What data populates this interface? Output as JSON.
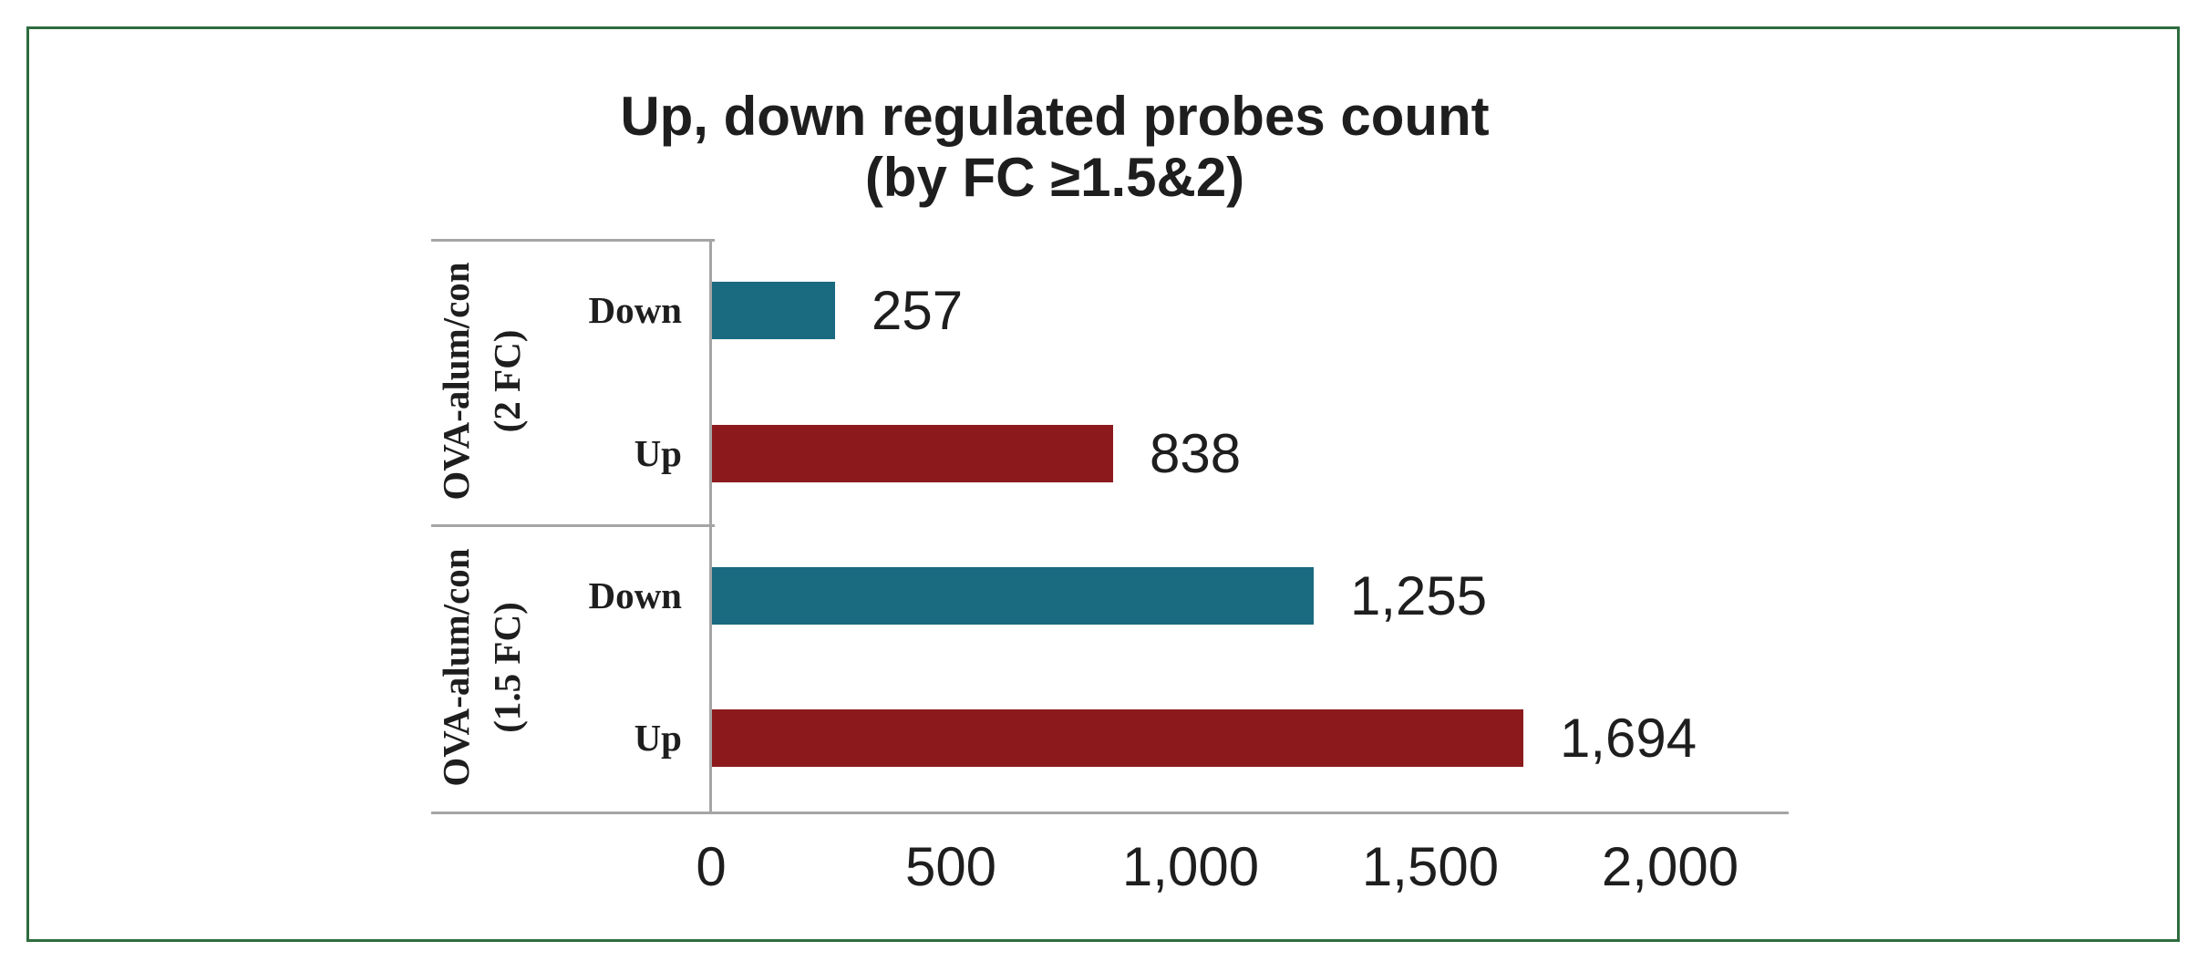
{
  "page": {
    "background_color": "#FFFFFF",
    "frame_color": "#2E6C3E"
  },
  "chart_data": {
    "type": "bar",
    "orientation": "horizontal",
    "title": {
      "line1": "Up, down regulated probes count",
      "line2": "(by FC ≥1.5&2)"
    },
    "axis_color": "#A5A5A5",
    "text_color": "#1E1E1E",
    "bar_colors": {
      "down": "#1A6A80",
      "up": "#8C1A1C"
    },
    "xlim": [
      0,
      2000
    ],
    "x_tick_labels": [
      "0",
      "500",
      "1,000",
      "1,500",
      "2,000"
    ],
    "grid": "off",
    "legend": "none",
    "groups": [
      {
        "label_line1": "OVA-alum/con",
        "label_line2": "(2 FC)",
        "bars": [
          {
            "category": "Down",
            "value": 257,
            "value_label": "257"
          },
          {
            "category": "Up",
            "value": 838,
            "value_label": "838"
          }
        ]
      },
      {
        "label_line1": "OVA-alum/con",
        "label_line2": "(1.5 FC)",
        "bars": [
          {
            "category": "Down",
            "value": 1255,
            "value_label": "1,255"
          },
          {
            "category": "Up",
            "value": 1694,
            "value_label": "1,694"
          }
        ]
      }
    ]
  }
}
